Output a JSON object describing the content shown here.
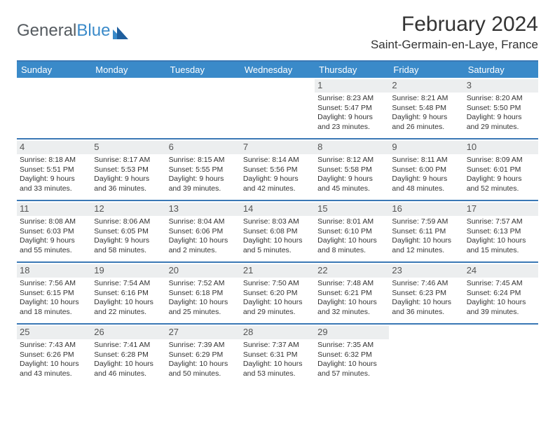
{
  "brand": {
    "part1": "General",
    "part2": "Blue"
  },
  "title": "February 2024",
  "location": "Saint-Germain-en-Laye, France",
  "colors": {
    "header_bg": "#3a8ac9",
    "rule": "#3a78b5",
    "daynum_bg": "#eceeef",
    "text": "#333333",
    "logo_gray": "#555b60"
  },
  "fonts": {
    "title_size": 30,
    "location_size": 17,
    "dayhead_size": 13,
    "cell_size": 11
  },
  "day_headers": [
    "Sunday",
    "Monday",
    "Tuesday",
    "Wednesday",
    "Thursday",
    "Friday",
    "Saturday"
  ],
  "weeks": [
    [
      null,
      null,
      null,
      null,
      {
        "n": "1",
        "sunrise": "Sunrise: 8:23 AM",
        "sunset": "Sunset: 5:47 PM",
        "day1": "Daylight: 9 hours",
        "day2": "and 23 minutes."
      },
      {
        "n": "2",
        "sunrise": "Sunrise: 8:21 AM",
        "sunset": "Sunset: 5:48 PM",
        "day1": "Daylight: 9 hours",
        "day2": "and 26 minutes."
      },
      {
        "n": "3",
        "sunrise": "Sunrise: 8:20 AM",
        "sunset": "Sunset: 5:50 PM",
        "day1": "Daylight: 9 hours",
        "day2": "and 29 minutes."
      }
    ],
    [
      {
        "n": "4",
        "sunrise": "Sunrise: 8:18 AM",
        "sunset": "Sunset: 5:51 PM",
        "day1": "Daylight: 9 hours",
        "day2": "and 33 minutes."
      },
      {
        "n": "5",
        "sunrise": "Sunrise: 8:17 AM",
        "sunset": "Sunset: 5:53 PM",
        "day1": "Daylight: 9 hours",
        "day2": "and 36 minutes."
      },
      {
        "n": "6",
        "sunrise": "Sunrise: 8:15 AM",
        "sunset": "Sunset: 5:55 PM",
        "day1": "Daylight: 9 hours",
        "day2": "and 39 minutes."
      },
      {
        "n": "7",
        "sunrise": "Sunrise: 8:14 AM",
        "sunset": "Sunset: 5:56 PM",
        "day1": "Daylight: 9 hours",
        "day2": "and 42 minutes."
      },
      {
        "n": "8",
        "sunrise": "Sunrise: 8:12 AM",
        "sunset": "Sunset: 5:58 PM",
        "day1": "Daylight: 9 hours",
        "day2": "and 45 minutes."
      },
      {
        "n": "9",
        "sunrise": "Sunrise: 8:11 AM",
        "sunset": "Sunset: 6:00 PM",
        "day1": "Daylight: 9 hours",
        "day2": "and 48 minutes."
      },
      {
        "n": "10",
        "sunrise": "Sunrise: 8:09 AM",
        "sunset": "Sunset: 6:01 PM",
        "day1": "Daylight: 9 hours",
        "day2": "and 52 minutes."
      }
    ],
    [
      {
        "n": "11",
        "sunrise": "Sunrise: 8:08 AM",
        "sunset": "Sunset: 6:03 PM",
        "day1": "Daylight: 9 hours",
        "day2": "and 55 minutes."
      },
      {
        "n": "12",
        "sunrise": "Sunrise: 8:06 AM",
        "sunset": "Sunset: 6:05 PM",
        "day1": "Daylight: 9 hours",
        "day2": "and 58 minutes."
      },
      {
        "n": "13",
        "sunrise": "Sunrise: 8:04 AM",
        "sunset": "Sunset: 6:06 PM",
        "day1": "Daylight: 10 hours",
        "day2": "and 2 minutes."
      },
      {
        "n": "14",
        "sunrise": "Sunrise: 8:03 AM",
        "sunset": "Sunset: 6:08 PM",
        "day1": "Daylight: 10 hours",
        "day2": "and 5 minutes."
      },
      {
        "n": "15",
        "sunrise": "Sunrise: 8:01 AM",
        "sunset": "Sunset: 6:10 PM",
        "day1": "Daylight: 10 hours",
        "day2": "and 8 minutes."
      },
      {
        "n": "16",
        "sunrise": "Sunrise: 7:59 AM",
        "sunset": "Sunset: 6:11 PM",
        "day1": "Daylight: 10 hours",
        "day2": "and 12 minutes."
      },
      {
        "n": "17",
        "sunrise": "Sunrise: 7:57 AM",
        "sunset": "Sunset: 6:13 PM",
        "day1": "Daylight: 10 hours",
        "day2": "and 15 minutes."
      }
    ],
    [
      {
        "n": "18",
        "sunrise": "Sunrise: 7:56 AM",
        "sunset": "Sunset: 6:15 PM",
        "day1": "Daylight: 10 hours",
        "day2": "and 18 minutes."
      },
      {
        "n": "19",
        "sunrise": "Sunrise: 7:54 AM",
        "sunset": "Sunset: 6:16 PM",
        "day1": "Daylight: 10 hours",
        "day2": "and 22 minutes."
      },
      {
        "n": "20",
        "sunrise": "Sunrise: 7:52 AM",
        "sunset": "Sunset: 6:18 PM",
        "day1": "Daylight: 10 hours",
        "day2": "and 25 minutes."
      },
      {
        "n": "21",
        "sunrise": "Sunrise: 7:50 AM",
        "sunset": "Sunset: 6:20 PM",
        "day1": "Daylight: 10 hours",
        "day2": "and 29 minutes."
      },
      {
        "n": "22",
        "sunrise": "Sunrise: 7:48 AM",
        "sunset": "Sunset: 6:21 PM",
        "day1": "Daylight: 10 hours",
        "day2": "and 32 minutes."
      },
      {
        "n": "23",
        "sunrise": "Sunrise: 7:46 AM",
        "sunset": "Sunset: 6:23 PM",
        "day1": "Daylight: 10 hours",
        "day2": "and 36 minutes."
      },
      {
        "n": "24",
        "sunrise": "Sunrise: 7:45 AM",
        "sunset": "Sunset: 6:24 PM",
        "day1": "Daylight: 10 hours",
        "day2": "and 39 minutes."
      }
    ],
    [
      {
        "n": "25",
        "sunrise": "Sunrise: 7:43 AM",
        "sunset": "Sunset: 6:26 PM",
        "day1": "Daylight: 10 hours",
        "day2": "and 43 minutes."
      },
      {
        "n": "26",
        "sunrise": "Sunrise: 7:41 AM",
        "sunset": "Sunset: 6:28 PM",
        "day1": "Daylight: 10 hours",
        "day2": "and 46 minutes."
      },
      {
        "n": "27",
        "sunrise": "Sunrise: 7:39 AM",
        "sunset": "Sunset: 6:29 PM",
        "day1": "Daylight: 10 hours",
        "day2": "and 50 minutes."
      },
      {
        "n": "28",
        "sunrise": "Sunrise: 7:37 AM",
        "sunset": "Sunset: 6:31 PM",
        "day1": "Daylight: 10 hours",
        "day2": "and 53 minutes."
      },
      {
        "n": "29",
        "sunrise": "Sunrise: 7:35 AM",
        "sunset": "Sunset: 6:32 PM",
        "day1": "Daylight: 10 hours",
        "day2": "and 57 minutes."
      },
      null,
      null
    ]
  ]
}
